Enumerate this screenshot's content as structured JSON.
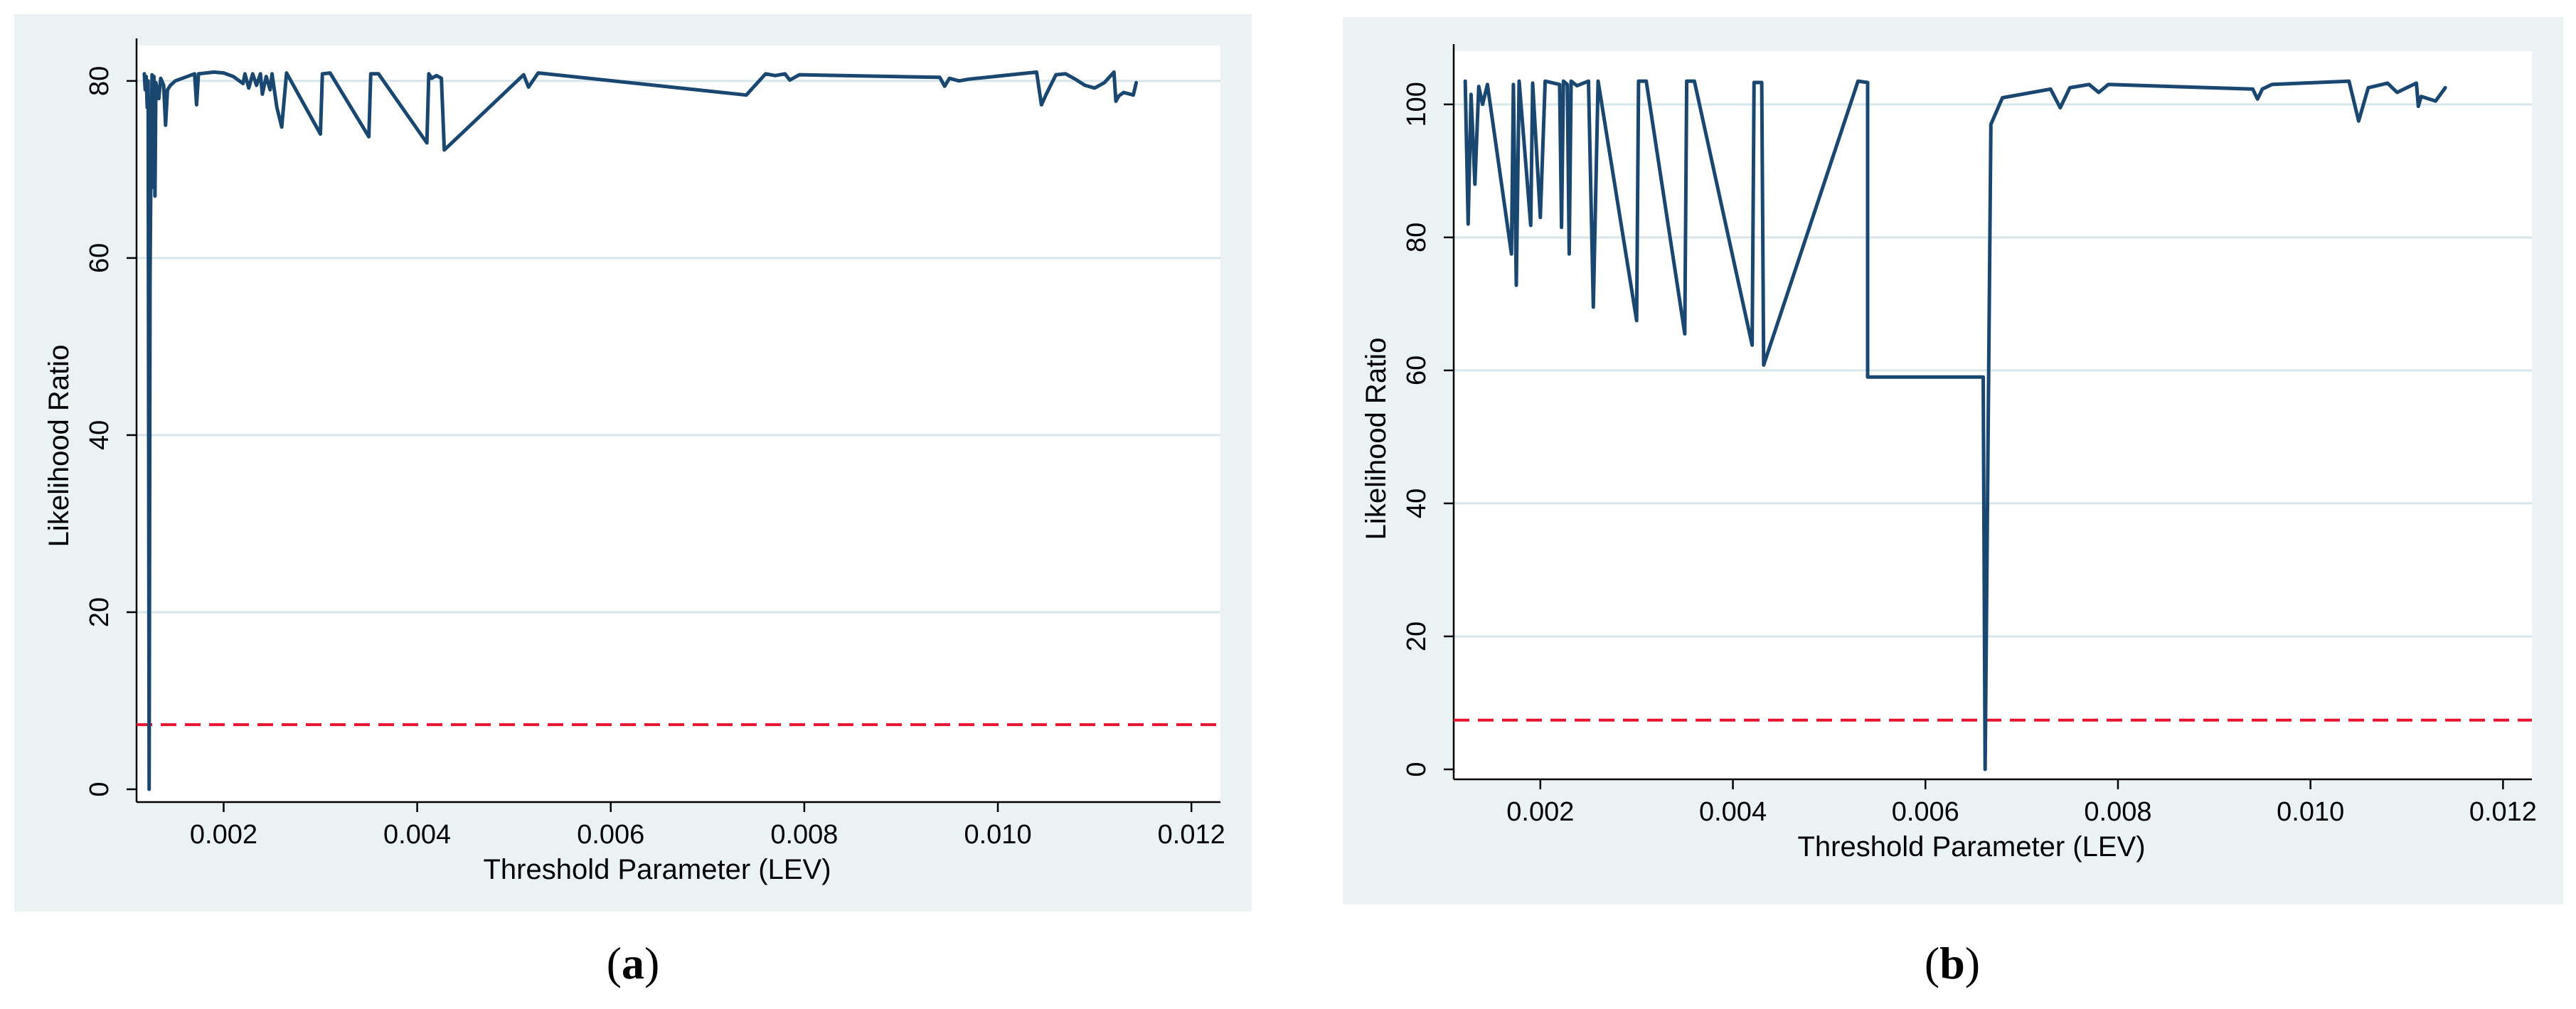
{
  "colors": {
    "outer_background": "#eaf2f3",
    "plot_background": "#ffffff",
    "gridline": "#d6e6ea",
    "series_line": "#1a476f",
    "critical_line": "#e8132e",
    "axis": "#000000"
  },
  "chart_data": [
    {
      "id": "a",
      "type": "line",
      "caption_open": "(",
      "caption_letter": "a",
      "caption_close": ")",
      "xlabel": "Threshold Parameter (LEV)",
      "ylabel": "Likelihood Ratio",
      "xlim": [
        0.0011,
        0.0123
      ],
      "ylim": [
        0,
        84
      ],
      "xticks": [
        0.002,
        0.004,
        0.006,
        0.008,
        0.01,
        0.012
      ],
      "xtick_labels": [
        "0.002",
        "0.004",
        "0.006",
        "0.008",
        "0.010",
        "0.012"
      ],
      "yticks": [
        0,
        20,
        40,
        60,
        80
      ],
      "ytick_labels": [
        "0",
        "20",
        "40",
        "60",
        "80"
      ],
      "grid": true,
      "critical_value": 7.3,
      "series": [
        {
          "points": [
            [
              0.00118,
              80.8
            ],
            [
              0.00119,
              79
            ],
            [
              0.0012,
              80.5
            ],
            [
              0.00121,
              77
            ],
            [
              0.00122,
              80
            ],
            [
              0.00123,
              0
            ],
            [
              0.00124,
              58
            ],
            [
              0.00125,
              72
            ],
            [
              0.00126,
              80.7
            ],
            [
              0.00127,
              68
            ],
            [
              0.00128,
              80.5
            ],
            [
              0.00129,
              67
            ],
            [
              0.0013,
              79.8
            ],
            [
              0.00133,
              78
            ],
            [
              0.00135,
              80.3
            ],
            [
              0.00138,
              79.5
            ],
            [
              0.0014,
              75
            ],
            [
              0.00142,
              79
            ],
            [
              0.00145,
              79.5
            ],
            [
              0.0015,
              80
            ],
            [
              0.0017,
              80.8
            ],
            [
              0.00172,
              77.3
            ],
            [
              0.00174,
              80.8
            ],
            [
              0.0019,
              81
            ],
            [
              0.002,
              80.9
            ],
            [
              0.0021,
              80.5
            ],
            [
              0.0022,
              79.7
            ],
            [
              0.00222,
              80.8
            ],
            [
              0.00226,
              79.2
            ],
            [
              0.0023,
              80.8
            ],
            [
              0.00234,
              79.5
            ],
            [
              0.00238,
              80.8
            ],
            [
              0.0024,
              78.5
            ],
            [
              0.00244,
              80.5
            ],
            [
              0.00248,
              79
            ],
            [
              0.0025,
              80.8
            ],
            [
              0.00255,
              77
            ],
            [
              0.0026,
              74.8
            ],
            [
              0.00265,
              80.9
            ],
            [
              0.003,
              74
            ],
            [
              0.00302,
              80.8
            ],
            [
              0.0031,
              80.9
            ],
            [
              0.0035,
              73.7
            ],
            [
              0.00352,
              80.8
            ],
            [
              0.0036,
              80.8
            ],
            [
              0.0041,
              73
            ],
            [
              0.00412,
              80.8
            ],
            [
              0.00415,
              80.3
            ],
            [
              0.0042,
              80.6
            ],
            [
              0.00425,
              80.3
            ],
            [
              0.00428,
              72.2
            ],
            [
              0.0051,
              80.7
            ],
            [
              0.00515,
              79.3
            ],
            [
              0.00525,
              80.9
            ],
            [
              0.0074,
              78.4
            ],
            [
              0.0076,
              80.8
            ],
            [
              0.0077,
              80.6
            ],
            [
              0.0078,
              80.8
            ],
            [
              0.00785,
              80.1
            ],
            [
              0.00795,
              80.7
            ],
            [
              0.0094,
              80.4
            ],
            [
              0.00945,
              79.4
            ],
            [
              0.0095,
              80.3
            ],
            [
              0.0096,
              80
            ],
            [
              0.0097,
              80.2
            ],
            [
              0.0104,
              81
            ],
            [
              0.01045,
              77.3
            ],
            [
              0.0105,
              78.5
            ],
            [
              0.0106,
              80.7
            ],
            [
              0.0107,
              80.8
            ],
            [
              0.0108,
              80.2
            ],
            [
              0.0109,
              79.5
            ],
            [
              0.011,
              79.2
            ],
            [
              0.0111,
              79.8
            ],
            [
              0.0112,
              81
            ],
            [
              0.01122,
              77.7
            ],
            [
              0.01125,
              78.3
            ],
            [
              0.0113,
              78.7
            ],
            [
              0.0114,
              78.4
            ],
            [
              0.01143,
              79.8
            ]
          ]
        }
      ]
    },
    {
      "id": "b",
      "type": "line",
      "caption_open": "(",
      "caption_letter": "b",
      "caption_close": ")",
      "xlabel": "Threshold Parameter (LEV)",
      "ylabel": "Likelihood Ratio",
      "xlim": [
        0.0011,
        0.0123
      ],
      "ylim": [
        0,
        108
      ],
      "xticks": [
        0.002,
        0.004,
        0.006,
        0.008,
        0.01,
        0.012
      ],
      "xtick_labels": [
        "0.002",
        "0.004",
        "0.006",
        "0.008",
        "0.010",
        "0.012"
      ],
      "yticks": [
        0,
        20,
        40,
        60,
        80,
        100
      ],
      "ytick_labels": [
        "0",
        "20",
        "40",
        "60",
        "80",
        "100"
      ],
      "grid": true,
      "critical_value": 7.4,
      "series": [
        {
          "points": [
            [
              0.00122,
              103.5
            ],
            [
              0.00125,
              82
            ],
            [
              0.00128,
              101.5
            ],
            [
              0.00132,
              88
            ],
            [
              0.00136,
              102.7
            ],
            [
              0.0014,
              100
            ],
            [
              0.00145,
              103
            ],
            [
              0.0017,
              77.5
            ],
            [
              0.00172,
              103
            ],
            [
              0.00175,
              72.8
            ],
            [
              0.00178,
              103.5
            ],
            [
              0.0019,
              81.8
            ],
            [
              0.00192,
              103.2
            ],
            [
              0.002,
              83
            ],
            [
              0.00205,
              103.5
            ],
            [
              0.0022,
              103
            ],
            [
              0.00222,
              81.5
            ],
            [
              0.00224,
              103.5
            ],
            [
              0.00228,
              103
            ],
            [
              0.0023,
              77.5
            ],
            [
              0.00232,
              103.5
            ],
            [
              0.00238,
              102.8
            ],
            [
              0.0025,
              103.5
            ],
            [
              0.00255,
              69.5
            ],
            [
              0.0026,
              103.5
            ],
            [
              0.003,
              67.5
            ],
            [
              0.00302,
              103.5
            ],
            [
              0.0031,
              103.5
            ],
            [
              0.0035,
              65.5
            ],
            [
              0.00352,
              103.5
            ],
            [
              0.0036,
              103.5
            ],
            [
              0.0042,
              63.8
            ],
            [
              0.00422,
              103.3
            ],
            [
              0.0043,
              103.3
            ],
            [
              0.00432,
              60.8
            ],
            [
              0.0053,
              103.5
            ],
            [
              0.0054,
              103.3
            ],
            [
              0.0054,
              59
            ],
            [
              0.0066,
              59
            ],
            [
              0.00662,
              0
            ],
            [
              0.00668,
              97
            ],
            [
              0.0068,
              101
            ],
            [
              0.0073,
              102.3
            ],
            [
              0.0074,
              99.5
            ],
            [
              0.0075,
              102.5
            ],
            [
              0.0077,
              103
            ],
            [
              0.0078,
              101.8
            ],
            [
              0.0079,
              103
            ],
            [
              0.0094,
              102.3
            ],
            [
              0.00945,
              100.8
            ],
            [
              0.0095,
              102.3
            ],
            [
              0.0096,
              103
            ],
            [
              0.0104,
              103.5
            ],
            [
              0.0105,
              97.5
            ],
            [
              0.0106,
              102.5
            ],
            [
              0.0108,
              103.2
            ],
            [
              0.0109,
              101.8
            ],
            [
              0.011,
              102.5
            ],
            [
              0.0111,
              103.2
            ],
            [
              0.01112,
              99.7
            ],
            [
              0.01115,
              101.2
            ],
            [
              0.0113,
              100.5
            ],
            [
              0.0114,
              102.5
            ]
          ]
        }
      ]
    }
  ]
}
